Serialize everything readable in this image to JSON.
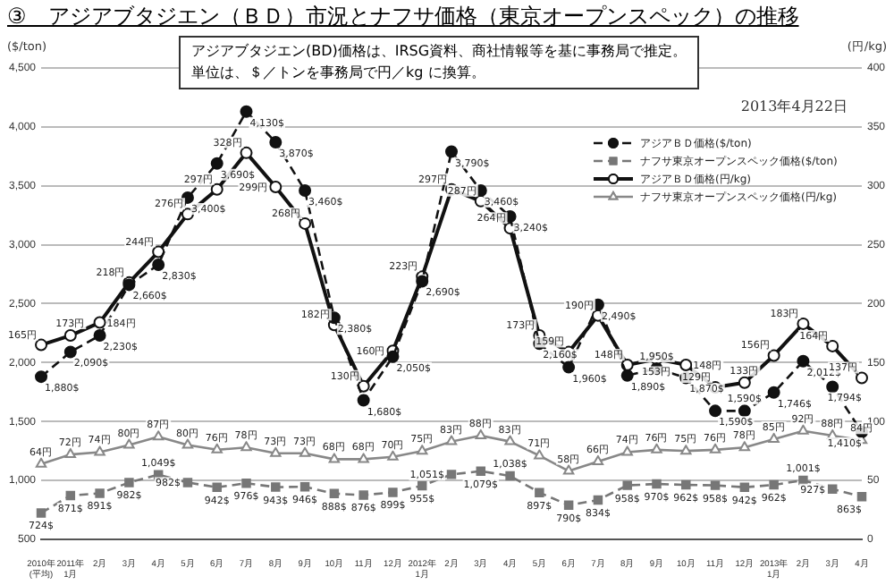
{
  "chart_data": {
    "type": "line",
    "title": "③　アジアブタジエン（ＢＤ）市況とナフサ価格（東京オープンスペック）の推移",
    "ylabel": "($/ton)",
    "y2label": "(円/kg)",
    "annotations": [
      "アジアブタジエン(BD)価格は、IRSG資料、商社情報等を基に事務局で推定。",
      "単位は、＄／トンを事務局で円／kg に換算。",
      "2013年4月22日"
    ],
    "categories": [
      "2010年\n(平均)",
      "2011年\n1月",
      "2月",
      "3月",
      "4月",
      "5月",
      "6月",
      "7月",
      "8月",
      "9月",
      "10月",
      "11月",
      "12月",
      "2012年\n1月",
      "2月",
      "3月",
      "4月",
      "5月",
      "6月",
      "7月",
      "8月",
      "9月",
      "10月",
      "11月",
      "12月",
      "2013年\n1月",
      "2月",
      "3月",
      "4月"
    ],
    "series": [
      {
        "name": "アジアＢＤ価格($/ton)",
        "color": "#111111",
        "marker": "circle",
        "line_style": "dashed",
        "values": [
          1880,
          2090,
          2230,
          2660,
          2830,
          3400,
          3690,
          4130,
          3870,
          3460,
          2380,
          1680,
          2050,
          2690,
          3790,
          3460,
          3240,
          2160,
          1960,
          2490,
          1890,
          1950,
          1870,
          1590,
          1590,
          1746,
          2012,
          1794,
          1410
        ],
        "value_labels": [
          "1,880$",
          "2,090$",
          "2,230$",
          "2,660$",
          "2,830$",
          "3,400$",
          "3,690$",
          "4,130$",
          "3,870$",
          "3,460$",
          "2,380$",
          "1,680$",
          "2,050$",
          "2,690$",
          "3,790$",
          "3,460$",
          "3,240$",
          "2,160$",
          "1,960$",
          "2,490$",
          "1,890$",
          "1,950$",
          "1,870$",
          "1,590$",
          "1,590$",
          "1,746$",
          "2,012$",
          "1,794$",
          "1,410$"
        ]
      },
      {
        "name": "ナフサ東京オープンスペック価格($/ton)",
        "color": "#777777",
        "marker": "square",
        "line_style": "dashed",
        "values": [
          724,
          871,
          891,
          982,
          1049,
          982,
          942,
          976,
          943,
          946,
          888,
          876,
          899,
          955,
          1051,
          1079,
          1038,
          897,
          790,
          834,
          958,
          970,
          962,
          958,
          942,
          962,
          1001,
          927,
          863
        ],
        "value_labels": [
          "724$",
          "871$",
          "891$",
          "982$",
          "1,049$",
          "982$",
          "942$",
          "976$",
          "943$",
          "946$",
          "888$",
          "876$",
          "899$",
          "955$",
          "1,051$",
          "1,079$",
          "1,038$",
          "897$",
          "790$",
          "834$",
          "958$",
          "970$",
          "962$",
          "958$",
          "942$",
          "962$",
          "1,001$",
          "927$",
          "863$"
        ]
      },
      {
        "name": "アジアＢＤ価格(円/kg)",
        "color": "#111111",
        "marker": "circle",
        "line_style": "solid",
        "axis": "y2",
        "values": [
          165,
          173,
          184,
          218,
          244,
          276,
          297,
          328,
          299,
          268,
          182,
          130,
          160,
          223,
          297,
          287,
          264,
          173,
          159,
          190,
          148,
          153,
          148,
          129,
          133,
          156,
          183,
          164,
          137
        ],
        "value_labels": [
          "165円",
          "173円",
          "184円",
          "218円",
          "244円",
          "276円",
          "297円",
          "328円",
          "299円",
          "268円",
          "182円",
          "130円",
          "160円",
          "223円",
          "297円",
          "287円",
          "264円",
          "173円",
          "159円",
          "190円",
          "148円",
          "153円",
          "148円",
          "129円",
          "133円",
          "156円",
          "183円",
          "164円",
          "137円"
        ]
      },
      {
        "name": "ナフサ東京オープンスペック価格(円/kg)",
        "color": "#888888",
        "marker": "triangle",
        "line_style": "solid",
        "axis": "y2",
        "values": [
          64,
          72,
          74,
          80,
          87,
          80,
          76,
          78,
          73,
          73,
          68,
          68,
          70,
          75,
          83,
          88,
          83,
          71,
          58,
          66,
          74,
          76,
          75,
          76,
          78,
          85,
          92,
          88,
          84
        ],
        "value_labels": [
          "64円",
          "72円",
          "74円",
          "80円",
          "87円",
          "80円",
          "76円",
          "78円",
          "73円",
          "73円",
          "68円",
          "68円",
          "70円",
          "75円",
          "83円",
          "88円",
          "83円",
          "71円",
          "58円",
          "66円",
          "74円",
          "76円",
          "75円",
          "76円",
          "78円",
          "85円",
          "92円",
          "88円",
          "84円"
        ]
      }
    ],
    "ylim": [
      500,
      4500
    ],
    "yticks": [
      500,
      {
        "value": 1000,
        "label": "1,000"
      },
      {
        "value": 1500,
        "label": "1,500"
      },
      {
        "value": 2000,
        "label": "2,000"
      },
      {
        "value": 2500,
        "label": "2,500"
      },
      {
        "value": 3000,
        "label": "3,000"
      },
      {
        "value": 3500,
        "label": "3,500"
      },
      {
        "value": 4000,
        "label": "4,000"
      },
      {
        "value": 4500,
        "label": "4,500"
      }
    ],
    "y2lim": [
      0,
      400
    ],
    "y2ticks": [
      0,
      50,
      100,
      150,
      200,
      250,
      300,
      350,
      400
    ],
    "grid": "y",
    "legend": "top right"
  }
}
